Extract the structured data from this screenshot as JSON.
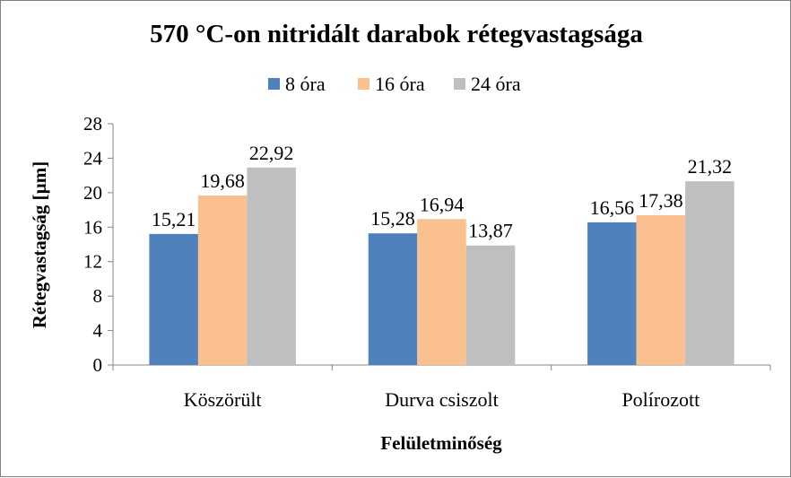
{
  "chart_data": {
    "type": "bar",
    "title": "570 °C-on nitridált darabok rétegvastagsága",
    "xlabel": "Felületminőség",
    "ylabel": "Rétegvastagság [µm]",
    "categories": [
      "Köszörült",
      "Durva csiszolt",
      "Polírozott"
    ],
    "series": [
      {
        "name": "8 óra",
        "values": [
          15.21,
          15.28,
          16.56
        ],
        "labels": [
          "15,21",
          "15,28",
          "16,56"
        ],
        "color": "#4f81bd"
      },
      {
        "name": "16 óra",
        "values": [
          19.68,
          16.94,
          17.38
        ],
        "labels": [
          "19,68",
          "16,94",
          "17,38"
        ],
        "color": "#fac090"
      },
      {
        "name": "24 óra",
        "values": [
          22.92,
          13.87,
          21.32
        ],
        "labels": [
          "22,92",
          "13,87",
          "21,32"
        ],
        "color": "#bfbfbf"
      }
    ],
    "ylim": [
      0,
      28
    ],
    "yticks": [
      0,
      4,
      8,
      12,
      16,
      20,
      24,
      28
    ],
    "grid": false,
    "legend": "top"
  }
}
